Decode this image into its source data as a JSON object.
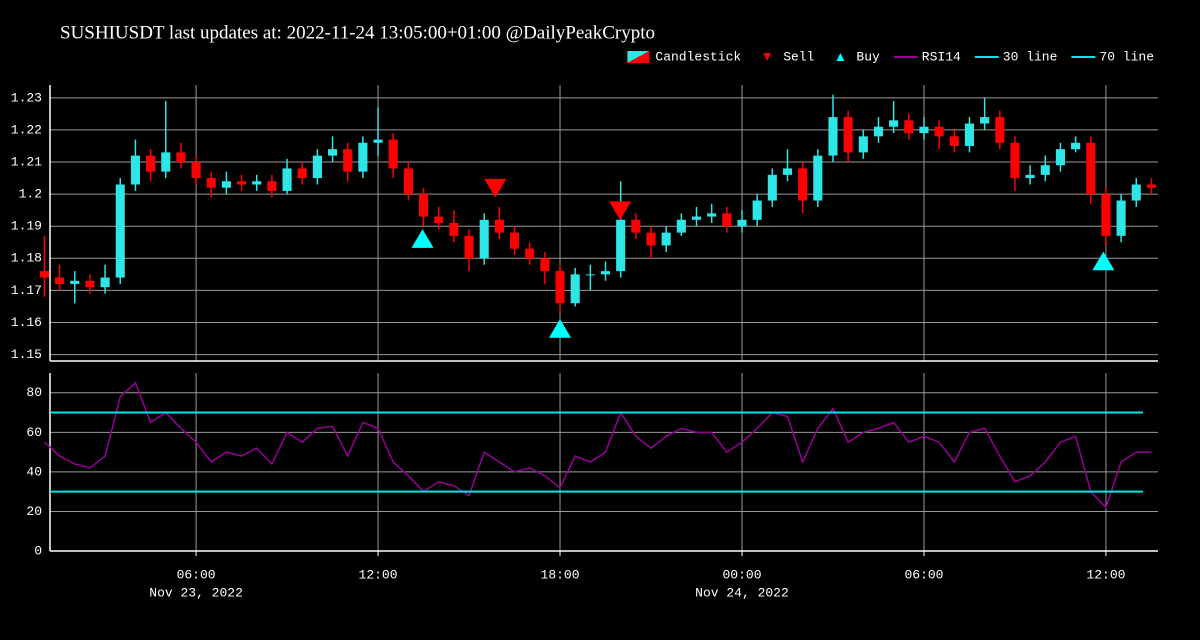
{
  "chart_data": [
    {
      "type": "candlestick",
      "title": "SUSHIUSDT last updates at: 2022-11-24 13:05:00+01:00 @DailyPeakCrypto",
      "name": "Candlestick",
      "up_color": "#2ee6e6",
      "down_color": "#ff0000",
      "x": [
        "2022-11-23 01:00",
        "2022-11-23 01:30",
        "2022-11-23 02:00",
        "2022-11-23 02:30",
        "2022-11-23 03:00",
        "2022-11-23 03:30",
        "2022-11-23 04:00",
        "2022-11-23 04:30",
        "2022-11-23 05:00",
        "2022-11-23 05:30",
        "2022-11-23 06:00",
        "2022-11-23 06:30",
        "2022-11-23 07:00",
        "2022-11-23 07:30",
        "2022-11-23 08:00",
        "2022-11-23 08:30",
        "2022-11-23 09:00",
        "2022-11-23 09:30",
        "2022-11-23 10:00",
        "2022-11-23 10:30",
        "2022-11-23 11:00",
        "2022-11-23 11:30",
        "2022-11-23 12:00",
        "2022-11-23 12:30",
        "2022-11-23 13:00",
        "2022-11-23 13:30",
        "2022-11-23 14:00",
        "2022-11-23 14:30",
        "2022-11-23 15:00",
        "2022-11-23 15:30",
        "2022-11-23 16:00",
        "2022-11-23 16:30",
        "2022-11-23 17:00",
        "2022-11-23 17:30",
        "2022-11-23 18:00",
        "2022-11-23 18:30",
        "2022-11-23 19:00",
        "2022-11-23 19:30",
        "2022-11-23 20:00",
        "2022-11-23 20:30",
        "2022-11-23 21:00",
        "2022-11-23 21:30",
        "2022-11-23 22:00",
        "2022-11-23 22:30",
        "2022-11-23 23:00",
        "2022-11-23 23:30",
        "2022-11-24 00:00",
        "2022-11-24 00:30",
        "2022-11-24 01:00",
        "2022-11-24 01:30",
        "2022-11-24 02:00",
        "2022-11-24 02:30",
        "2022-11-24 03:00",
        "2022-11-24 03:30",
        "2022-11-24 04:00",
        "2022-11-24 04:30",
        "2022-11-24 05:00",
        "2022-11-24 05:30",
        "2022-11-24 06:00",
        "2022-11-24 06:30",
        "2022-11-24 07:00",
        "2022-11-24 07:30",
        "2022-11-24 08:00",
        "2022-11-24 08:30",
        "2022-11-24 09:00",
        "2022-11-24 09:30",
        "2022-11-24 10:00",
        "2022-11-24 10:30",
        "2022-11-24 11:00",
        "2022-11-24 11:30",
        "2022-11-24 12:00",
        "2022-11-24 12:30",
        "2022-11-24 13:00",
        "2022-11-24 13:30"
      ],
      "open": [
        1.176,
        1.174,
        1.172,
        1.173,
        1.171,
        1.174,
        1.203,
        1.212,
        1.207,
        1.213,
        1.21,
        1.205,
        1.202,
        1.204,
        1.203,
        1.204,
        1.201,
        1.208,
        1.205,
        1.212,
        1.214,
        1.207,
        1.216,
        1.217,
        1.208,
        1.2,
        1.193,
        1.191,
        1.187,
        1.18,
        1.192,
        1.188,
        1.183,
        1.18,
        1.176,
        1.166,
        1.175,
        1.175,
        1.176,
        1.192,
        1.188,
        1.184,
        1.188,
        1.192,
        1.193,
        1.194,
        1.19,
        1.192,
        1.198,
        1.206,
        1.208,
        1.198,
        1.212,
        1.224,
        1.213,
        1.218,
        1.221,
        1.223,
        1.219,
        1.221,
        1.218,
        1.215,
        1.222,
        1.224,
        1.216,
        1.205,
        1.206,
        1.209,
        1.214,
        1.216,
        1.2,
        1.187,
        1.198,
        1.203
      ],
      "high": [
        1.187,
        1.178,
        1.176,
        1.175,
        1.178,
        1.205,
        1.217,
        1.214,
        1.229,
        1.216,
        1.212,
        1.207,
        1.207,
        1.206,
        1.206,
        1.206,
        1.211,
        1.21,
        1.214,
        1.218,
        1.216,
        1.218,
        1.227,
        1.219,
        1.21,
        1.202,
        1.196,
        1.195,
        1.189,
        1.194,
        1.196,
        1.19,
        1.185,
        1.182,
        1.178,
        1.177,
        1.178,
        1.179,
        1.204,
        1.194,
        1.19,
        1.19,
        1.194,
        1.196,
        1.197,
        1.196,
        1.195,
        1.2,
        1.208,
        1.214,
        1.21,
        1.214,
        1.231,
        1.226,
        1.22,
        1.224,
        1.229,
        1.225,
        1.224,
        1.223,
        1.22,
        1.224,
        1.23,
        1.226,
        1.218,
        1.209,
        1.212,
        1.216,
        1.218,
        1.218,
        1.202,
        1.2,
        1.205,
        1.205
      ],
      "low": [
        1.168,
        1.17,
        1.166,
        1.169,
        1.169,
        1.172,
        1.201,
        1.204,
        1.205,
        1.208,
        1.203,
        1.199,
        1.2,
        1.201,
        1.201,
        1.199,
        1.2,
        1.203,
        1.203,
        1.21,
        1.204,
        1.205,
        1.212,
        1.205,
        1.198,
        1.19,
        1.189,
        1.185,
        1.176,
        1.178,
        1.186,
        1.181,
        1.178,
        1.172,
        1.163,
        1.165,
        1.17,
        1.173,
        1.174,
        1.186,
        1.18,
        1.182,
        1.187,
        1.19,
        1.191,
        1.188,
        1.188,
        1.19,
        1.196,
        1.204,
        1.194,
        1.196,
        1.21,
        1.21,
        1.211,
        1.216,
        1.219,
        1.217,
        1.217,
        1.214,
        1.213,
        1.213,
        1.22,
        1.214,
        1.201,
        1.203,
        1.204,
        1.207,
        1.213,
        1.197,
        1.184,
        1.185,
        1.196,
        1.2
      ],
      "close": [
        1.174,
        1.172,
        1.173,
        1.171,
        1.174,
        1.203,
        1.212,
        1.207,
        1.213,
        1.21,
        1.205,
        1.202,
        1.204,
        1.203,
        1.204,
        1.201,
        1.208,
        1.205,
        1.212,
        1.214,
        1.207,
        1.216,
        1.217,
        1.208,
        1.2,
        1.193,
        1.191,
        1.187,
        1.18,
        1.192,
        1.188,
        1.183,
        1.18,
        1.176,
        1.166,
        1.175,
        1.175,
        1.176,
        1.192,
        1.188,
        1.184,
        1.188,
        1.192,
        1.193,
        1.194,
        1.19,
        1.192,
        1.198,
        1.206,
        1.208,
        1.198,
        1.212,
        1.224,
        1.213,
        1.218,
        1.221,
        1.223,
        1.219,
        1.221,
        1.218,
        1.215,
        1.222,
        1.224,
        1.216,
        1.205,
        1.206,
        1.209,
        1.214,
        1.216,
        1.2,
        1.187,
        1.198,
        1.203,
        1.202
      ],
      "signals": [
        {
          "name": "Sell",
          "color": "#ff0000",
          "marker": "triangle-down",
          "x": [
            "2022-11-23 15:52",
            "2022-11-23 19:59"
          ],
          "values": [
            1.202,
            1.195
          ]
        },
        {
          "name": "Buy",
          "color": "#00ffff",
          "marker": "triangle-up",
          "x": [
            "2022-11-23 13:28",
            "2022-11-23 18:00",
            "2022-11-24 11:55"
          ],
          "values": [
            1.186,
            1.158,
            1.179
          ]
        }
      ],
      "xlim": [
        "2022-11-23 01:11",
        "2022-11-24 13:43"
      ],
      "xticks": [
        "2022-11-23 06:00",
        "2022-11-23 12:00",
        "2022-11-23 18:00",
        "2022-11-24 00:00",
        "2022-11-24 06:00",
        "2022-11-24 12:00"
      ],
      "ylim": [
        1.148,
        1.234
      ],
      "yticks": [
        1.15,
        1.16,
        1.17,
        1.18,
        1.19,
        1.2,
        1.21,
        1.22,
        1.23
      ],
      "grid": true
    },
    {
      "type": "line",
      "x": [
        "2022-11-23 01:00",
        "2022-11-23 01:30",
        "2022-11-23 02:00",
        "2022-11-23 02:30",
        "2022-11-23 03:00",
        "2022-11-23 03:30",
        "2022-11-23 04:00",
        "2022-11-23 04:30",
        "2022-11-23 05:00",
        "2022-11-23 05:30",
        "2022-11-23 06:00",
        "2022-11-23 06:30",
        "2022-11-23 07:00",
        "2022-11-23 07:30",
        "2022-11-23 08:00",
        "2022-11-23 08:30",
        "2022-11-23 09:00",
        "2022-11-23 09:30",
        "2022-11-23 10:00",
        "2022-11-23 10:30",
        "2022-11-23 11:00",
        "2022-11-23 11:30",
        "2022-11-23 12:00",
        "2022-11-23 12:30",
        "2022-11-23 13:00",
        "2022-11-23 13:30",
        "2022-11-23 14:00",
        "2022-11-23 14:30",
        "2022-11-23 15:00",
        "2022-11-23 15:30",
        "2022-11-23 16:00",
        "2022-11-23 16:30",
        "2022-11-23 17:00",
        "2022-11-23 17:30",
        "2022-11-23 18:00",
        "2022-11-23 18:30",
        "2022-11-23 19:00",
        "2022-11-23 19:30",
        "2022-11-23 20:00",
        "2022-11-23 20:30",
        "2022-11-23 21:00",
        "2022-11-23 21:30",
        "2022-11-23 22:00",
        "2022-11-23 22:30",
        "2022-11-23 23:00",
        "2022-11-23 23:30",
        "2022-11-24 00:00",
        "2022-11-24 00:30",
        "2022-11-24 01:00",
        "2022-11-24 01:30",
        "2022-11-24 02:00",
        "2022-11-24 02:30",
        "2022-11-24 03:00",
        "2022-11-24 03:30",
        "2022-11-24 04:00",
        "2022-11-24 04:30",
        "2022-11-24 05:00",
        "2022-11-24 05:30",
        "2022-11-24 06:00",
        "2022-11-24 06:30",
        "2022-11-24 07:00",
        "2022-11-24 07:30",
        "2022-11-24 08:00",
        "2022-11-24 08:30",
        "2022-11-24 09:00",
        "2022-11-24 09:30",
        "2022-11-24 10:00",
        "2022-11-24 10:30",
        "2022-11-24 11:00",
        "2022-11-24 11:30",
        "2022-11-24 12:00",
        "2022-11-24 12:30",
        "2022-11-24 13:00",
        "2022-11-24 13:30"
      ],
      "series": [
        {
          "name": "RSI14",
          "color": "#990099",
          "values": [
            55,
            48,
            44,
            42,
            48,
            78,
            85,
            65,
            70,
            62,
            55,
            45,
            50,
            48,
            52,
            44,
            60,
            55,
            62,
            63,
            48,
            65,
            62,
            45,
            38,
            30,
            35,
            33,
            28,
            50,
            45,
            40,
            42,
            38,
            32,
            48,
            45,
            50,
            70,
            58,
            52,
            58,
            62,
            60,
            60,
            50,
            55,
            62,
            70,
            68,
            45,
            62,
            72,
            55,
            60,
            62,
            65,
            55,
            58,
            55,
            45,
            60,
            62,
            48,
            35,
            38,
            45,
            55,
            58,
            30,
            22,
            45,
            50,
            50
          ]
        }
      ],
      "hlines": [
        {
          "name": "30 line",
          "value": 30,
          "color": "#00e5e5"
        },
        {
          "name": "70 line",
          "value": 70,
          "color": "#00e5e5"
        }
      ],
      "xlim": [
        "2022-11-23 01:11",
        "2022-11-24 13:43"
      ],
      "xticks": [
        {
          "value": "2022-11-23 06:00",
          "label": "06:00"
        },
        {
          "value": "2022-11-23 12:00",
          "label": "12:00"
        },
        {
          "value": "2022-11-23 18:00",
          "label": "18:00"
        },
        {
          "value": "2022-11-24 00:00",
          "label": "00:00"
        },
        {
          "value": "2022-11-24 06:00",
          "label": "06:00"
        },
        {
          "value": "2022-11-24 12:00",
          "label": "12:00"
        }
      ],
      "date_labels": [
        {
          "value": "2022-11-23 06:00",
          "label": "Nov 23, 2022"
        },
        {
          "value": "2022-11-24 00:00",
          "label": "Nov 24, 2022"
        }
      ],
      "ylim": [
        0,
        90
      ],
      "yticks": [
        0,
        20,
        40,
        60,
        80
      ],
      "grid": true
    }
  ]
}
